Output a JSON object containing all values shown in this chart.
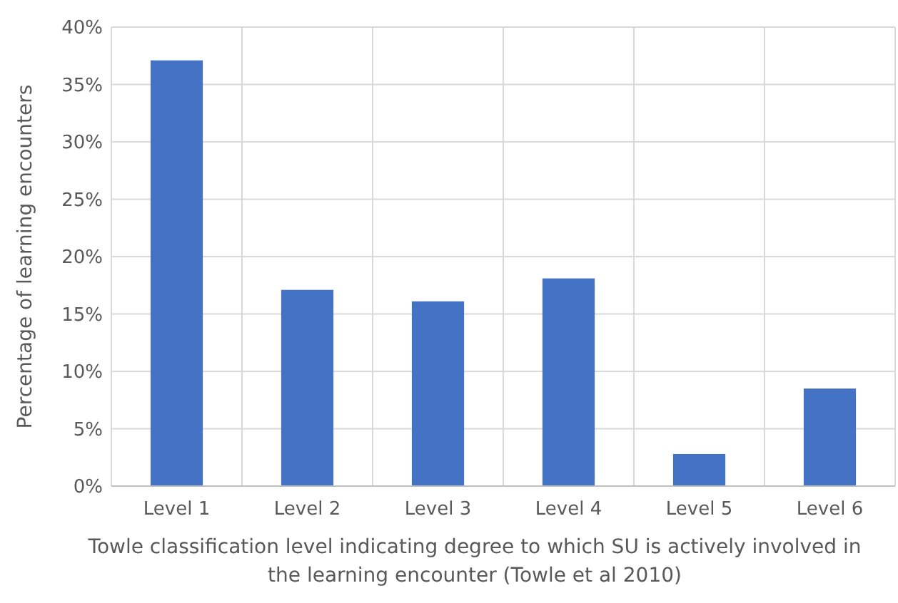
{
  "chart_data": {
    "type": "bar",
    "xlabel": "Towle classification level indicating degree to which SU is actively involved in the learning encounter (Towle et al 2010)",
    "ylabel": "Percentage of learning encounters",
    "categories": [
      "Level 1",
      "Level 2",
      "Level 3",
      "Level 4",
      "Level 5",
      "Level 6"
    ],
    "values": [
      37.1,
      17.1,
      16.1,
      18.1,
      2.8,
      8.5
    ],
    "color": "#4472c4",
    "ylim": [
      0,
      40
    ],
    "yticks": [
      {
        "value": 0,
        "label": "0%"
      },
      {
        "value": 5,
        "label": "5%"
      },
      {
        "value": 10,
        "label": "10%"
      },
      {
        "value": 15,
        "label": "15%"
      },
      {
        "value": 20,
        "label": "20%"
      },
      {
        "value": 25,
        "label": "25%"
      },
      {
        "value": 30,
        "label": "30%"
      },
      {
        "value": 35,
        "label": "35%"
      },
      {
        "value": 40,
        "label": "40%"
      }
    ],
    "grid": true
  }
}
